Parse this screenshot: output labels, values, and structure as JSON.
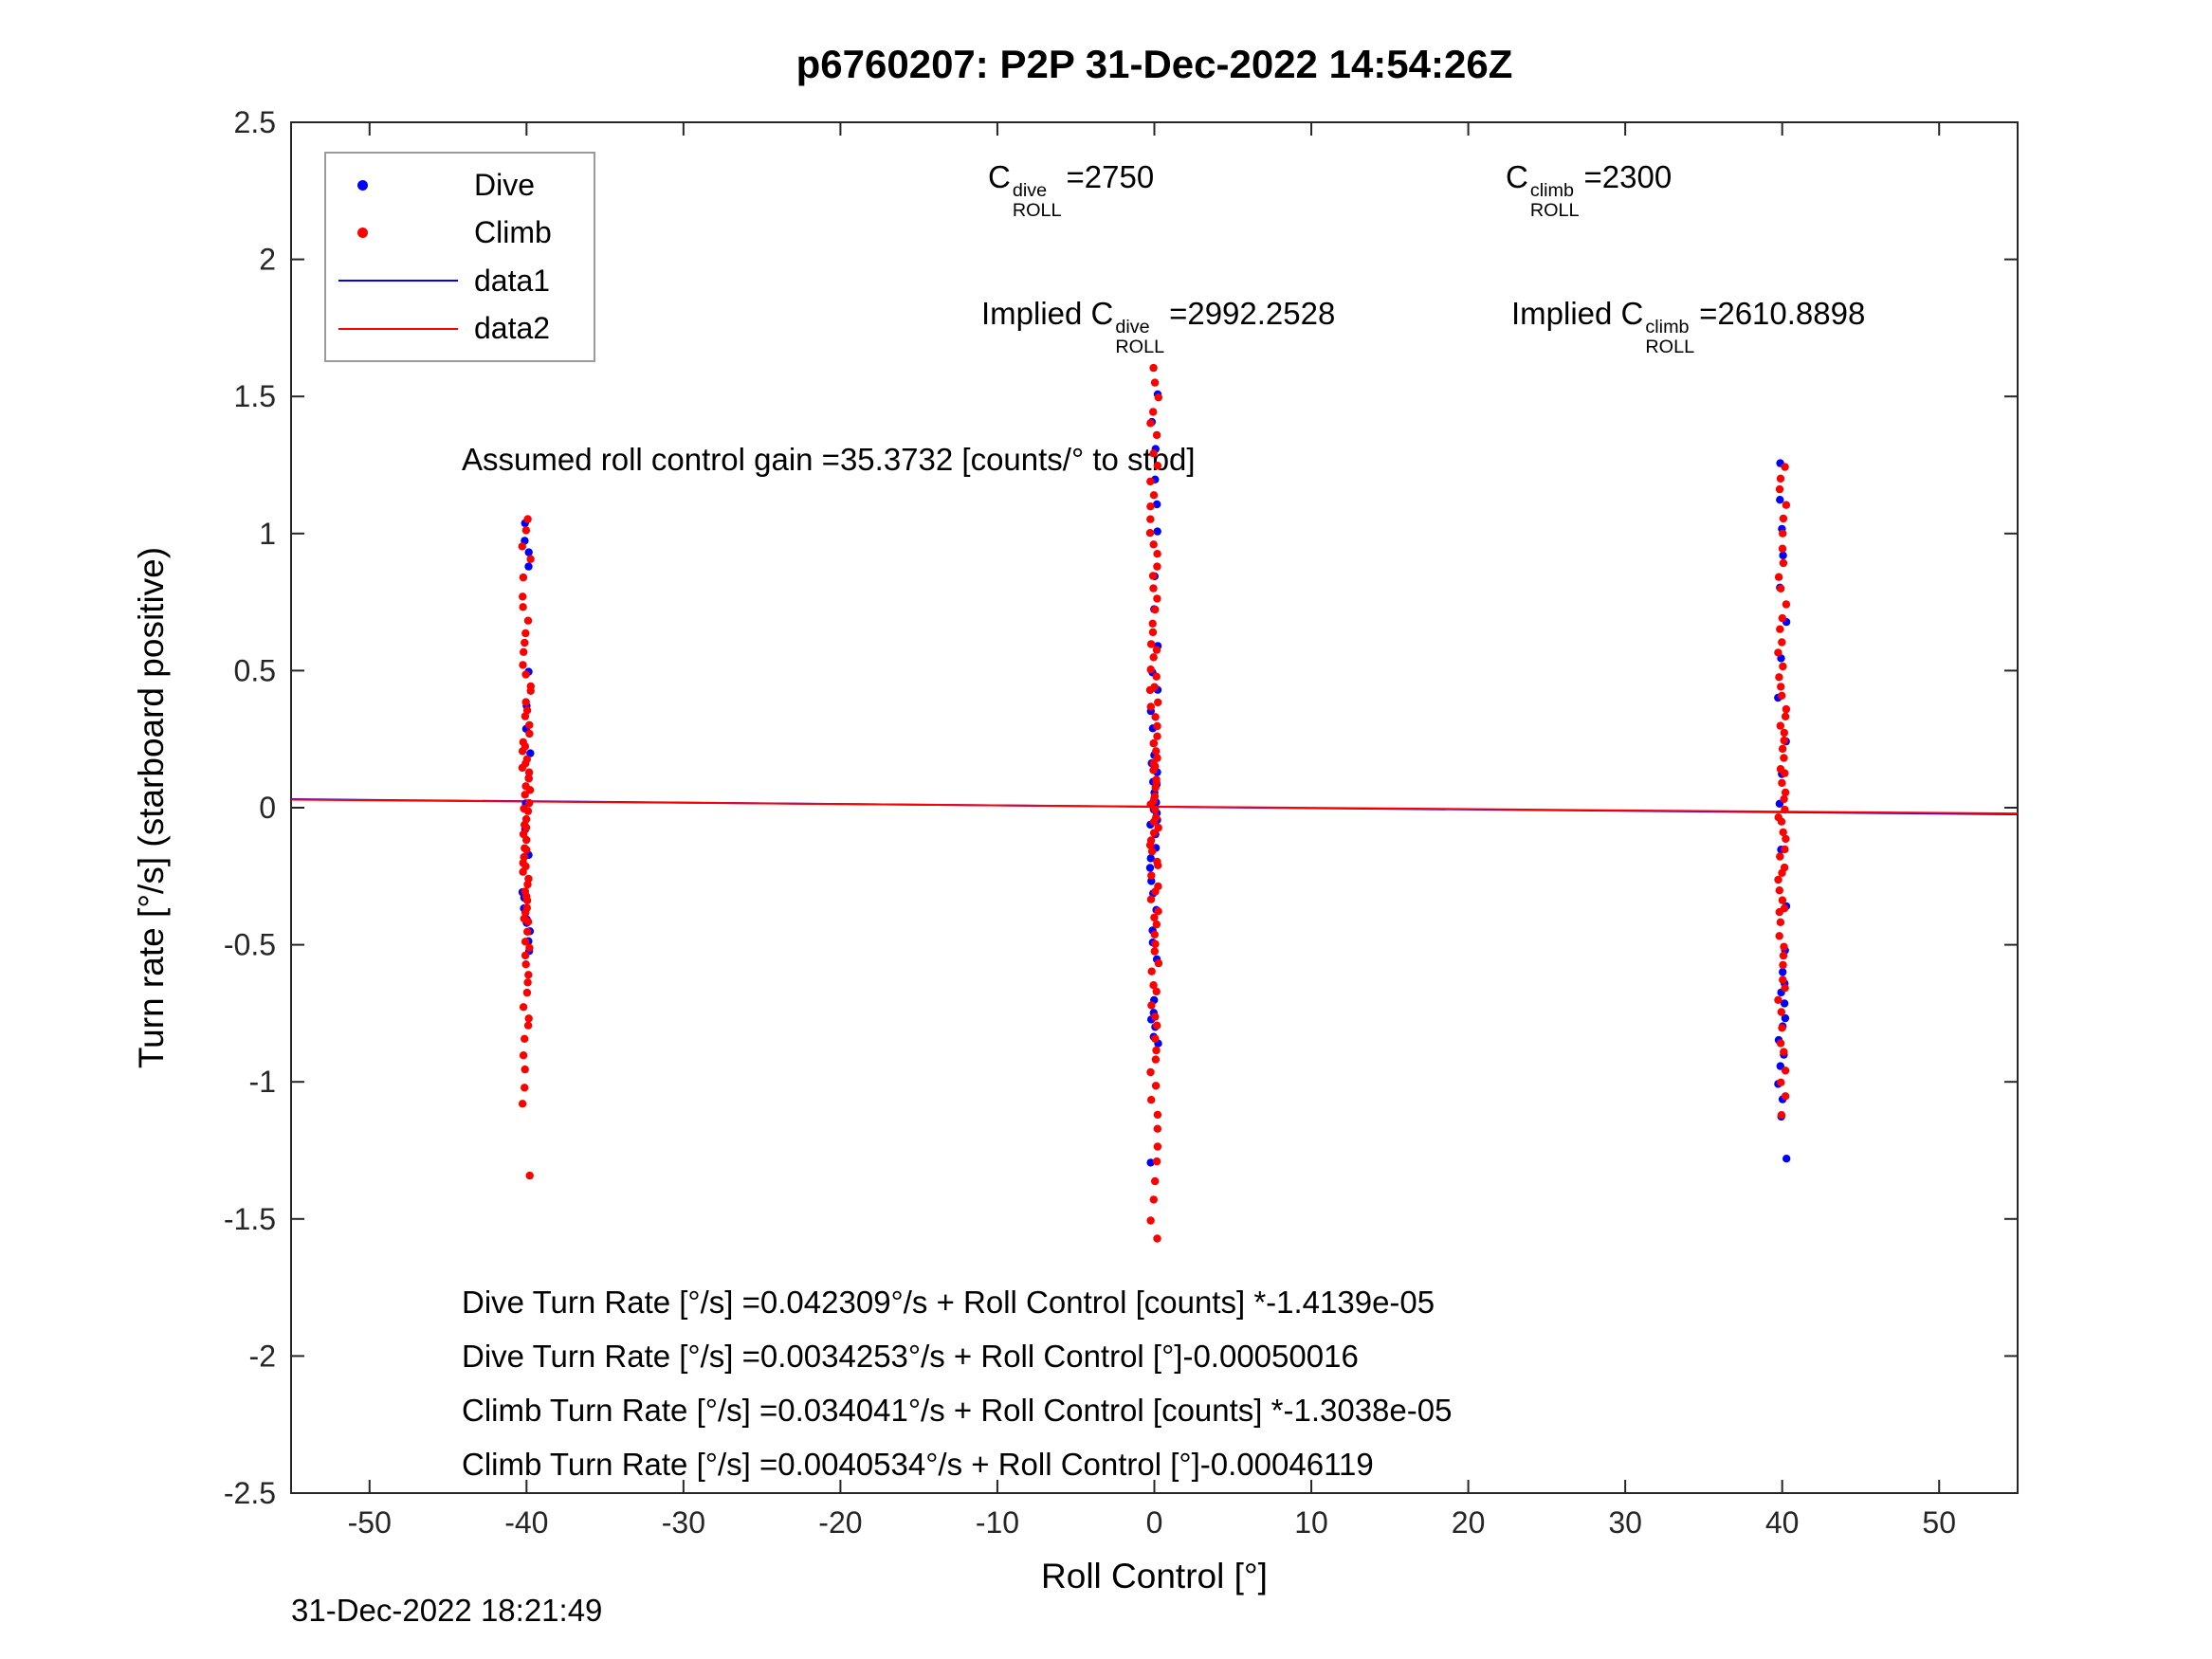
{
  "title": "p6760207: P2P 31-Dec-2022 14:54:26Z",
  "timestamp": "31-Dec-2022 18:21:49",
  "legend": {
    "items": [
      {
        "label": "Dive",
        "marker": "dot",
        "color": "#0000ff"
      },
      {
        "label": "Climb",
        "marker": "dot",
        "color": "#ff0000"
      },
      {
        "label": "data1",
        "marker": "line",
        "color": "#0000ff"
      },
      {
        "label": "data2",
        "marker": "line",
        "color": "#ff0000"
      }
    ]
  },
  "annotations": {
    "c_dive": {
      "prefix": "C",
      "sup": "dive",
      "sub": "ROLL",
      "value": "=2750"
    },
    "c_climb": {
      "prefix": "C",
      "sup": "climb",
      "sub": "ROLL",
      "value": "=2300"
    },
    "implied_dive": {
      "prefix": "Implied C",
      "sup": "dive",
      "sub": "ROLL",
      "value": "=2992.2528"
    },
    "implied_climb": {
      "prefix": "Implied C",
      "sup": "climb",
      "sub": "ROLL",
      "value": "=2610.8898"
    },
    "gain": "Assumed roll control gain =35.3732 [counts/° to stbd]",
    "fit_lines": [
      "Dive Turn Rate [°/s] =0.042309°/s + Roll Control [counts] *-1.4139e-05",
      "Dive Turn Rate [°/s] =0.0034253°/s + Roll Control [°]-0.00050016",
      "Climb Turn Rate [°/s] =0.034041°/s + Roll Control [counts] *-1.3038e-05",
      "Climb Turn Rate [°/s] =0.0040534°/s + Roll Control [°]-0.00046119"
    ]
  },
  "chart_data": {
    "type": "scatter",
    "title": "p6760207: P2P 31-Dec-2022 14:54:26Z",
    "xlabel": "Roll Control [°]",
    "ylabel": "Turn rate [°/s] (starboard positive)",
    "xlim": [
      -55,
      55
    ],
    "ylim": [
      -2.5,
      2.5
    ],
    "xticks": [
      -50,
      -40,
      -30,
      -20,
      -10,
      0,
      10,
      20,
      30,
      40,
      50
    ],
    "yticks": [
      -2.5,
      -2,
      -1.5,
      -1,
      -0.5,
      0,
      0.5,
      1,
      1.5,
      2,
      2.5
    ],
    "grid": false,
    "legend_position": "top-left",
    "axis_color": "#262626",
    "series": [
      {
        "name": "Dive",
        "color": "#0000ff",
        "marker": "dot",
        "clusters": [
          {
            "x": -40,
            "y": [
              -0.52,
              -0.49,
              -0.46,
              -0.43,
              -0.41,
              -0.38,
              -0.36,
              -0.33,
              -0.31,
              -0.18,
              -0.07,
              0.02,
              0.1,
              0.19,
              0.28,
              0.38,
              0.5,
              0.88,
              0.93,
              0.98,
              1.03
            ]
          },
          {
            "x": 0,
            "y": [
              -1.3,
              -0.86,
              -0.83,
              -0.8,
              -0.77,
              -0.74,
              -0.71,
              -0.56,
              -0.5,
              -0.44,
              -0.38,
              -0.32,
              -0.27,
              -0.22,
              -0.18,
              -0.14,
              -0.1,
              -0.07,
              -0.04,
              -0.02,
              0.0,
              0.02,
              0.04,
              0.06,
              0.08,
              0.1,
              0.13,
              0.16,
              0.2,
              0.24,
              0.29,
              0.35,
              0.42,
              0.5,
              0.6,
              0.72,
              0.85,
              1.0,
              1.1,
              1.2,
              1.3,
              1.4,
              1.5
            ]
          },
          {
            "x": 40,
            "y": [
              -1.28,
              -1.12,
              -1.06,
              -1.0,
              -0.95,
              -0.9,
              -0.85,
              -0.8,
              -0.76,
              -0.72,
              -0.68,
              -0.64,
              -0.6,
              -0.52,
              -0.35,
              -0.15,
              0.02,
              0.12,
              0.25,
              0.4,
              0.55,
              0.68,
              0.8,
              0.92,
              1.02,
              1.12,
              1.26
            ]
          }
        ]
      },
      {
        "name": "Climb",
        "color": "#ff0000",
        "marker": "dot",
        "clusters": [
          {
            "x": -40,
            "y": [
              -1.35,
              -1.08,
              -1.02,
              -0.96,
              -0.9,
              -0.85,
              -0.8,
              -0.76,
              -0.72,
              -0.68,
              -0.64,
              -0.6,
              -0.57,
              -0.54,
              -0.51,
              -0.48,
              -0.45,
              -0.42,
              -0.4,
              -0.38,
              -0.36,
              -0.34,
              -0.32,
              -0.3,
              -0.28,
              -0.26,
              -0.24,
              -0.22,
              -0.2,
              -0.18,
              -0.16,
              -0.14,
              -0.12,
              -0.1,
              -0.08,
              -0.06,
              -0.04,
              -0.02,
              0.0,
              0.02,
              0.04,
              0.06,
              0.08,
              0.1,
              0.12,
              0.14,
              0.16,
              0.18,
              0.2,
              0.22,
              0.24,
              0.27,
              0.3,
              0.33,
              0.36,
              0.39,
              0.42,
              0.45,
              0.48,
              0.52,
              0.56,
              0.6,
              0.64,
              0.68,
              0.73,
              0.78,
              0.84,
              0.9,
              0.96,
              1.01,
              1.06
            ]
          },
          {
            "x": 0,
            "y": [
              -1.58,
              -1.5,
              -1.43,
              -1.36,
              -1.3,
              -1.24,
              -1.18,
              -1.12,
              -1.07,
              -1.02,
              -0.97,
              -0.92,
              -0.88,
              -0.84,
              -0.8,
              -0.76,
              -0.72,
              -0.68,
              -0.64,
              -0.6,
              -0.56,
              -0.52,
              -0.49,
              -0.46,
              -0.43,
              -0.4,
              -0.37,
              -0.34,
              -0.31,
              -0.28,
              -0.25,
              -0.22,
              -0.19,
              -0.16,
              -0.13,
              -0.11,
              -0.09,
              -0.07,
              -0.05,
              -0.03,
              -0.01,
              0.01,
              0.03,
              0.05,
              0.07,
              0.09,
              0.11,
              0.13,
              0.15,
              0.17,
              0.19,
              0.21,
              0.24,
              0.27,
              0.3,
              0.33,
              0.36,
              0.39,
              0.42,
              0.45,
              0.48,
              0.51,
              0.54,
              0.57,
              0.6,
              0.64,
              0.68,
              0.72,
              0.76,
              0.8,
              0.84,
              0.88,
              0.92,
              0.96,
              1.0,
              1.05,
              1.1,
              1.15,
              1.2,
              1.25,
              1.3,
              1.35,
              1.4,
              1.45,
              1.5,
              1.55,
              1.61
            ]
          },
          {
            "x": 40,
            "y": [
              -1.12,
              -1.06,
              -1.0,
              -0.95,
              -0.9,
              -0.85,
              -0.8,
              -0.75,
              -0.7,
              -0.66,
              -0.62,
              -0.58,
              -0.54,
              -0.5,
              -0.46,
              -0.42,
              -0.39,
              -0.36,
              -0.33,
              -0.3,
              -0.27,
              -0.24,
              -0.21,
              -0.18,
              -0.15,
              -0.12,
              -0.09,
              -0.06,
              -0.03,
              0.0,
              0.03,
              0.06,
              0.09,
              0.12,
              0.15,
              0.18,
              0.21,
              0.24,
              0.27,
              0.3,
              0.33,
              0.36,
              0.4,
              0.44,
              0.48,
              0.52,
              0.56,
              0.6,
              0.65,
              0.7,
              0.75,
              0.8,
              0.85,
              0.9,
              0.95,
              1.0,
              1.05,
              1.1,
              1.16,
              1.2,
              1.24
            ]
          }
        ]
      }
    ],
    "fits": [
      {
        "name": "data1",
        "color": "#0000ff",
        "intercept": 0.0034253,
        "slope": -0.00050016
      },
      {
        "name": "data2",
        "color": "#ff0000",
        "intercept": 0.0040534,
        "slope": -0.00046119
      }
    ]
  }
}
